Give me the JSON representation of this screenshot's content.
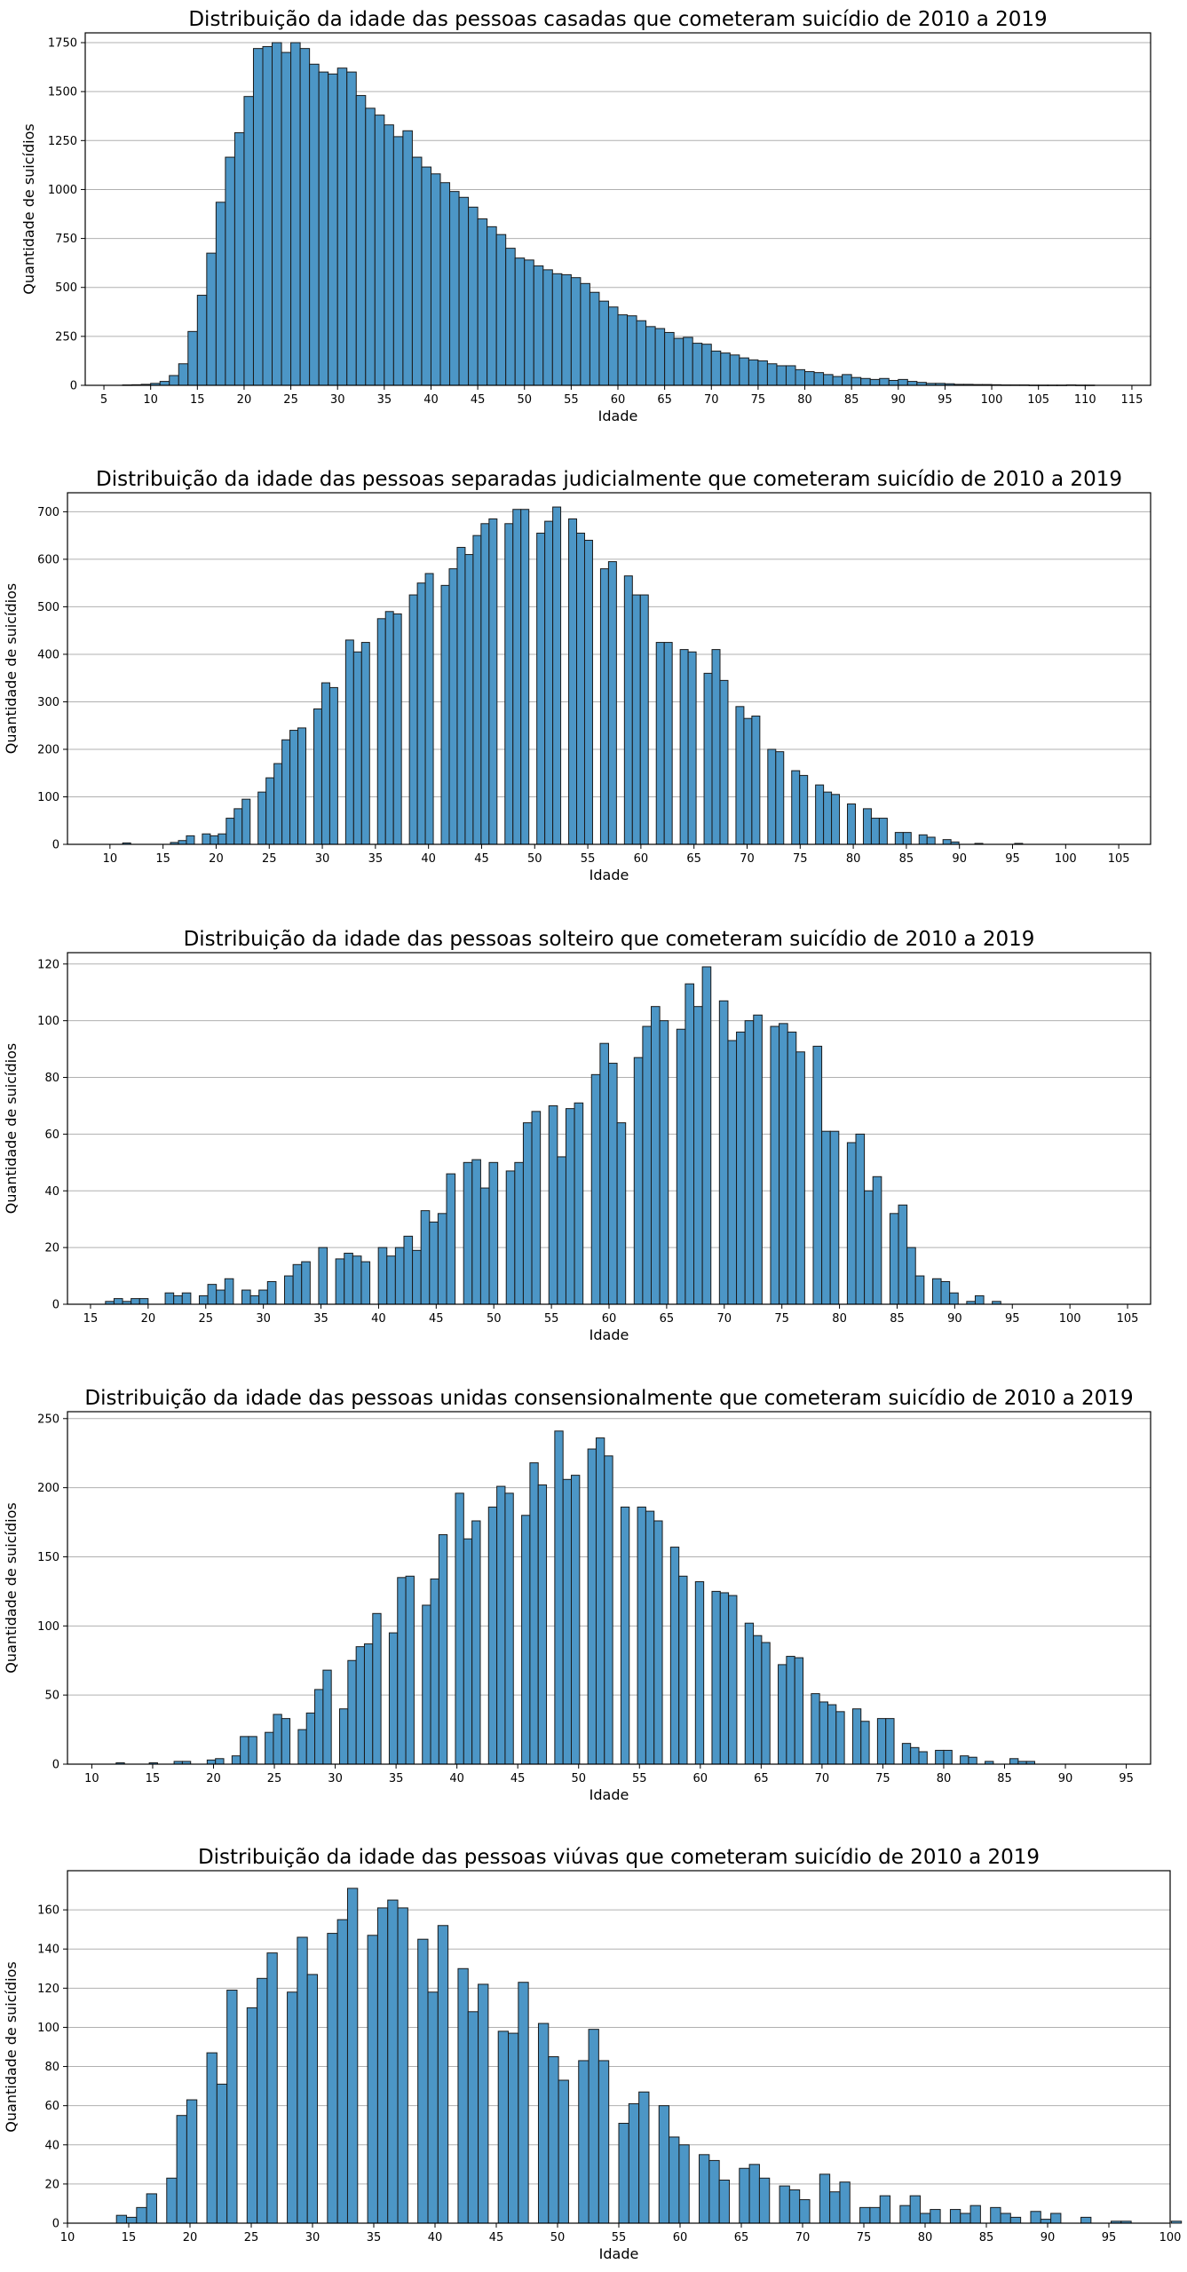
{
  "style": {
    "bar_color": "#4c96c6",
    "edge_color": "#1a1a1a",
    "grid_color": "#b0b0b0",
    "grid": "y-axis only"
  },
  "chart_data": [
    {
      "type": "bar",
      "title": "Distribuição da idade das pessoas casadas que cometeram suicídio de 2010 a 2019",
      "xlabel": "Idade",
      "ylabel": "Quantidade de suicídios",
      "xlim": [
        3,
        117
      ],
      "ylim": [
        0,
        1800
      ],
      "xticks": [
        5,
        10,
        15,
        20,
        25,
        30,
        35,
        40,
        45,
        50,
        55,
        60,
        65,
        70,
        75,
        80,
        85,
        90,
        95,
        100,
        105,
        110,
        115
      ],
      "yticks": [
        0,
        250,
        500,
        750,
        1000,
        1250,
        1500,
        1750
      ],
      "bin_start": 7,
      "bin_width": 1,
      "values": [
        2,
        3,
        5,
        10,
        20,
        50,
        110,
        275,
        460,
        675,
        935,
        1165,
        1290,
        1475,
        1720,
        1730,
        1750,
        1700,
        1750,
        1720,
        1640,
        1600,
        1590,
        1620,
        1600,
        1480,
        1415,
        1380,
        1330,
        1270,
        1300,
        1165,
        1115,
        1080,
        1035,
        990,
        960,
        910,
        850,
        810,
        770,
        700,
        650,
        640,
        610,
        590,
        570,
        565,
        550,
        520,
        475,
        430,
        400,
        360,
        355,
        330,
        300,
        290,
        270,
        240,
        245,
        215,
        210,
        175,
        165,
        155,
        140,
        130,
        125,
        110,
        100,
        100,
        80,
        70,
        65,
        55,
        45,
        55,
        40,
        35,
        30,
        35,
        25,
        30,
        20,
        15,
        10,
        10,
        8,
        5,
        5,
        4,
        4,
        3,
        2,
        2,
        2,
        1,
        1,
        1,
        1,
        2,
        1,
        1,
        0,
        0,
        0,
        0,
        0,
        0,
        0,
        0,
        0,
        0,
        1
      ]
    },
    {
      "type": "bar",
      "title": "Distribuição da idade das pessoas separadas judicialmente que cometeram suicídio de 2010 a 2019",
      "xlabel": "Idade",
      "ylabel": "Quantidade de suicídios",
      "xlim": [
        6,
        108
      ],
      "ylim": [
        0,
        740
      ],
      "xticks": [
        10,
        15,
        20,
        25,
        30,
        35,
        40,
        45,
        50,
        55,
        60,
        65,
        70,
        75,
        80,
        85,
        90,
        95,
        100,
        105
      ],
      "yticks": [
        0,
        100,
        200,
        300,
        400,
        500,
        600,
        700
      ],
      "bin_start": 11.2,
      "bin_width": 0.75,
      "values": [
        3,
        0,
        0,
        0,
        0,
        0,
        4,
        8,
        18,
        0,
        22,
        18,
        22,
        55,
        75,
        95,
        0,
        110,
        140,
        170,
        220,
        240,
        245,
        0,
        285,
        340,
        330,
        0,
        430,
        405,
        425,
        0,
        475,
        490,
        485,
        0,
        525,
        550,
        570,
        0,
        545,
        580,
        625,
        610,
        650,
        675,
        685,
        0,
        675,
        705,
        705,
        0,
        655,
        680,
        710,
        0,
        685,
        655,
        640,
        0,
        580,
        595,
        0,
        565,
        525,
        525,
        0,
        425,
        425,
        0,
        410,
        405,
        0,
        360,
        410,
        345,
        0,
        290,
        265,
        270,
        0,
        200,
        195,
        0,
        155,
        145,
        0,
        125,
        110,
        105,
        0,
        85,
        0,
        75,
        55,
        55,
        0,
        25,
        25,
        0,
        20,
        15,
        0,
        10,
        5,
        0,
        0,
        2,
        0,
        0,
        0,
        0,
        2,
        0,
        0,
        0,
        0
      ]
    },
    {
      "type": "bar",
      "title": "Distribuição da idade das pessoas solteiro que cometeram suicídio de 2010 a 2019",
      "xlabel": "Idade",
      "ylabel": "Quantidade de suicídios",
      "xlim": [
        13,
        107
      ],
      "ylim": [
        0,
        124
      ],
      "xticks": [
        15,
        20,
        25,
        30,
        35,
        40,
        45,
        50,
        55,
        60,
        65,
        70,
        75,
        80,
        85,
        90,
        95,
        100,
        105
      ],
      "yticks": [
        0,
        20,
        40,
        60,
        80,
        100,
        120
      ],
      "bin_start": 16.3,
      "bin_width": 0.74,
      "values": [
        1,
        2,
        1,
        2,
        2,
        0,
        0,
        4,
        3,
        4,
        0,
        3,
        7,
        5,
        9,
        0,
        5,
        3,
        5,
        8,
        0,
        10,
        14,
        15,
        0,
        20,
        0,
        16,
        18,
        17,
        15,
        0,
        20,
        17,
        20,
        24,
        19,
        33,
        29,
        32,
        46,
        0,
        50,
        51,
        41,
        50,
        0,
        47,
        50,
        64,
        68,
        0,
        70,
        52,
        69,
        71,
        0,
        81,
        92,
        85,
        64,
        0,
        87,
        98,
        105,
        100,
        0,
        97,
        113,
        105,
        119,
        0,
        107,
        93,
        96,
        100,
        102,
        0,
        98,
        99,
        96,
        89,
        0,
        91,
        61,
        61,
        0,
        57,
        60,
        40,
        45,
        0,
        32,
        35,
        20,
        10,
        0,
        9,
        8,
        4,
        0,
        1,
        3,
        0,
        1,
        0
      ]
    },
    {
      "type": "bar",
      "title": "Distribuição da idade das pessoas unidas consensionalmente que cometeram suicídio de 2010 a 2019",
      "xlabel": "Idade",
      "ylabel": "Quantidade de suicídios",
      "xlim": [
        8,
        97
      ],
      "ylim": [
        0,
        255
      ],
      "xticks": [
        10,
        15,
        20,
        25,
        30,
        35,
        40,
        45,
        50,
        55,
        60,
        65,
        70,
        75,
        80,
        85,
        90,
        95
      ],
      "yticks": [
        0,
        50,
        100,
        150,
        200,
        250
      ],
      "bin_start": 12,
      "bin_width": 0.68,
      "values": [
        1,
        0,
        0,
        0,
        1,
        0,
        0,
        2,
        2,
        0,
        0,
        3,
        4,
        0,
        6,
        20,
        20,
        0,
        23,
        36,
        33,
        0,
        25,
        37,
        54,
        68,
        0,
        40,
        75,
        85,
        87,
        109,
        0,
        95,
        135,
        136,
        0,
        115,
        134,
        166,
        0,
        196,
        163,
        176,
        0,
        186,
        201,
        196,
        0,
        180,
        218,
        202,
        0,
        241,
        206,
        209,
        0,
        228,
        236,
        223,
        0,
        186,
        0,
        186,
        183,
        176,
        0,
        157,
        136,
        0,
        132,
        0,
        125,
        124,
        122,
        0,
        102,
        93,
        88,
        0,
        72,
        78,
        77,
        0,
        51,
        45,
        43,
        38,
        0,
        40,
        31,
        0,
        33,
        33,
        0,
        15,
        12,
        9,
        0,
        10,
        10,
        0,
        6,
        5,
        0,
        2,
        0,
        0,
        4,
        2,
        2,
        0
      ]
    },
    {
      "type": "bar",
      "title": "Distribuição da idade das pessoas viúvas que cometeram suicídio de 2010 a 2019",
      "xlabel": "Idade",
      "ylabel": "Quantidade de suicídios",
      "xlim": [
        10,
        100
      ],
      "ylim": [
        0,
        180
      ],
      "xticks": [
        10,
        15,
        20,
        25,
        30,
        35,
        40,
        45,
        50,
        55,
        60,
        65,
        70,
        75,
        80,
        85,
        90,
        95,
        100
      ],
      "yticks": [
        0,
        20,
        40,
        60,
        80,
        100,
        120,
        140,
        160
      ],
      "bin_start": 14,
      "bin_width": 0.82,
      "values": [
        4,
        3,
        8,
        15,
        0,
        23,
        55,
        63,
        0,
        87,
        71,
        119,
        0,
        110,
        125,
        138,
        0,
        118,
        146,
        127,
        0,
        148,
        155,
        171,
        0,
        147,
        161,
        165,
        161,
        0,
        145,
        118,
        152,
        0,
        130,
        108,
        122,
        0,
        98,
        97,
        123,
        0,
        102,
        85,
        73,
        0,
        83,
        99,
        83,
        0,
        51,
        61,
        67,
        0,
        60,
        44,
        40,
        0,
        35,
        32,
        22,
        0,
        28,
        30,
        23,
        0,
        19,
        17,
        12,
        0,
        25,
        16,
        21,
        0,
        8,
        8,
        14,
        0,
        9,
        14,
        5,
        7,
        0,
        7,
        5,
        9,
        0,
        8,
        5,
        3,
        0,
        6,
        2,
        5,
        0,
        0,
        3,
        0,
        0,
        1,
        1,
        0,
        0,
        0,
        0,
        1,
        0
      ]
    }
  ]
}
